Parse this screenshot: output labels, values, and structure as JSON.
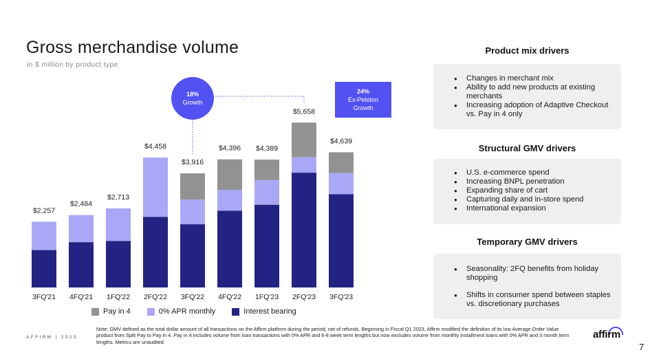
{
  "header": {
    "title": "Gross merchandise volume",
    "subtitle": "in $ million by product type"
  },
  "chart_data": {
    "type": "bar",
    "stacked": true,
    "title": "Gross merchandise volume",
    "subtitle": "in $ million by product type",
    "categories": [
      "3FQ'21",
      "4FQ'21",
      "1FQ'22",
      "2FQ'22",
      "3FQ'22",
      "4FQ'22",
      "1FQ'23",
      "2FQ'23",
      "3FQ'23"
    ],
    "series": [
      {
        "name": "Interest bearing",
        "color": "#232383",
        "values": [
          1284,
          1555,
          1595,
          2419,
          2169,
          2635,
          2840,
          3939,
          3198
        ]
      },
      {
        "name": "0% APR monthly",
        "color": "#a9a7f6",
        "values": [
          973,
          929,
          1118,
          2039,
          847,
          717,
          847,
          537,
          728
        ]
      },
      {
        "name": "Pay in 4",
        "color": "#929292",
        "values": [
          0,
          0,
          0,
          0,
          900,
          1044,
          702,
          1182,
          713
        ]
      }
    ],
    "totals": [
      2257,
      2484,
      2713,
      4458,
      3916,
      4396,
      4389,
      5658,
      4639
    ],
    "total_labels": [
      "$2,257",
      "$2,484",
      "$2,713",
      "$4,458",
      "$3,916",
      "$4,396",
      "$4,389",
      "$5,658",
      "$4,639"
    ],
    "ylim": [
      0,
      5900
    ],
    "legend": [
      "Pay in 4",
      "0% APR monthly",
      "Interest bearing"
    ],
    "annotations": [
      {
        "label_line1": "18%",
        "label_line2": "Growth",
        "shape": "circle",
        "color": "#5252f2",
        "from": "3FQ'22",
        "to": "2FQ'23"
      },
      {
        "label_line1": "24%",
        "label_line2": "Ex-Peloton",
        "label_line3": "Growth",
        "shape": "box",
        "color": "#5252f2",
        "target": "3FQ'23"
      }
    ]
  },
  "panels": {
    "product_mix": {
      "title": "Product mix drivers",
      "items": [
        "Changes in merchant mix",
        "Ability to add new products at existing merchants",
        "Increasing adoption of Adaptive Checkout vs. Pay in 4 only"
      ]
    },
    "structural": {
      "title": "Structural GMV drivers",
      "items": [
        "U.S. e-commerce spend",
        "Increasing BNPL penetration",
        "Expanding share of cart",
        "Capturing daily and  in-store spend",
        "International expansion"
      ]
    },
    "temporary": {
      "title": "Temporary GMV drivers",
      "items": [
        "Seasonality: 2FQ benefits from holiday shopping",
        "Shifts in consumer spend between staples vs. discretionary purchases"
      ]
    }
  },
  "footer": {
    "note": "Note: GMV defined as the total dollar amount of all transactions on the Affirm platform during the period, net of refunds. Beginning in Fiscal Q1 2023, Affirm modified the definition of its low Average Order Value product from Split Pay to Pay in 4. Pay in 4 includes volume from loan transactions with 0% APR and 6-8 week term lengths but now excludes volume from monthly installment loans with 0% APR and 3 month term lengths. Metrics are unaudited.",
    "brand": "AFFIRM | 2023",
    "logo": "affirm",
    "page_number": "7"
  }
}
